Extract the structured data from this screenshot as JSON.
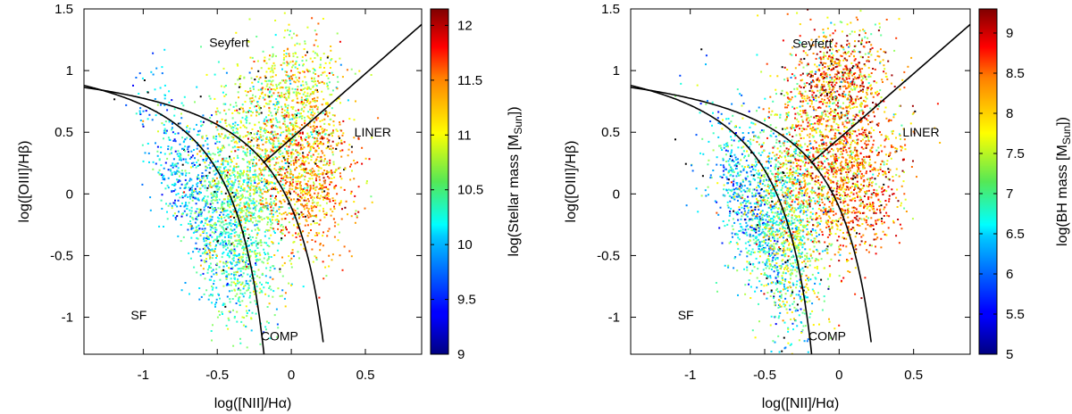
{
  "chart_data": [
    {
      "type": "scatter",
      "title": "",
      "xlabel": "log([NII]/Hα)",
      "ylabel": "log([OIII]/Hβ)",
      "xlim": [
        -1.4,
        0.88
      ],
      "ylim": [
        -1.3,
        1.5
      ],
      "xticks": [
        -1,
        -0.5,
        0,
        0.5
      ],
      "xtick_labels": [
        "-1",
        "-0.5",
        "0",
        "0.5"
      ],
      "yticks": [
        -1,
        -0.5,
        0,
        0.5,
        1,
        1.5
      ],
      "ytick_labels": [
        "-1",
        "-0.5",
        "0",
        "0.5",
        "1",
        "1.5"
      ],
      "colorbar": {
        "label": "log(Stellar mass [M",
        "label_sub": "Sun",
        "label_tail": "])",
        "range": [
          9,
          12.15
        ],
        "ticks": [
          9,
          9.5,
          10,
          10.5,
          11,
          11.5,
          12
        ],
        "tick_labels": [
          "9",
          "9.5",
          "10",
          "10.5",
          "11",
          "11.5",
          "12"
        ]
      },
      "regions": [
        {
          "label": "Seyfert",
          "x": -0.42,
          "y": 1.23
        },
        {
          "label": "LINER",
          "x": 0.55,
          "y": 0.5
        },
        {
          "label": "SF",
          "x": -1.03,
          "y": -0.98
        },
        {
          "label": "COMP",
          "x": -0.08,
          "y": -1.15
        }
      ],
      "demarcation_lines": [
        "Kauffmann 2003: y = 0.61/(x - 0.05) + 1.30",
        "Kewley 2001: y = 0.61/(x - 0.47) + 1.19",
        "Seyfert/LINER: y = 1.05x + 0.45"
      ],
      "point_clouds": [
        {
          "n": 650,
          "cx": -0.66,
          "cy": 0.02,
          "sx": 0.18,
          "sy": 0.42,
          "rho": -0.72,
          "cmean": 10.0,
          "csd": 0.35
        },
        {
          "n": 1100,
          "cx": -0.36,
          "cy": -0.22,
          "sx": 0.14,
          "sy": 0.45,
          "rho": -0.2,
          "cmean": 10.45,
          "csd": 0.3
        },
        {
          "n": 950,
          "cx": -0.12,
          "cy": 0.42,
          "sx": 0.2,
          "sy": 0.42,
          "rho": 0.28,
          "cmean": 10.85,
          "csd": 0.4
        },
        {
          "n": 750,
          "cx": 0.13,
          "cy": 0.13,
          "sx": 0.15,
          "sy": 0.3,
          "rho": 0.1,
          "cmean": 11.3,
          "csd": 0.35
        },
        {
          "n": 320,
          "cx": 0.02,
          "cy": 0.85,
          "sx": 0.17,
          "sy": 0.22,
          "rho": 0.1,
          "cmean": 10.9,
          "csd": 0.35
        }
      ]
    },
    {
      "type": "scatter",
      "title": "",
      "xlabel": "log([NII]/Hα)",
      "ylabel": "log([OIII]/Hβ)",
      "xlim": [
        -1.4,
        0.88
      ],
      "ylim": [
        -1.3,
        1.5
      ],
      "xticks": [
        -1,
        -0.5,
        0,
        0.5
      ],
      "xtick_labels": [
        "-1",
        "-0.5",
        "0",
        "0.5"
      ],
      "yticks": [
        -1,
        -0.5,
        0,
        0.5,
        1,
        1.5
      ],
      "ytick_labels": [
        "-1",
        "-0.5",
        "0",
        "0.5",
        "1",
        "1.5"
      ],
      "colorbar": {
        "label": "log(BH mass [M",
        "label_sub": "Sun",
        "label_tail": "])",
        "range": [
          5,
          9.3
        ],
        "ticks": [
          5,
          5.5,
          6,
          6.5,
          7,
          7.5,
          8,
          8.5,
          9
        ],
        "tick_labels": [
          "5",
          "5.5",
          "6",
          "6.5",
          "7",
          "7.5",
          "8",
          "8.5",
          "9"
        ]
      },
      "regions": [
        {
          "label": "Seyfert",
          "x": -0.18,
          "y": 1.22
        },
        {
          "label": "LINER",
          "x": 0.55,
          "y": 0.5
        },
        {
          "label": "SF",
          "x": -1.03,
          "y": -0.98
        },
        {
          "label": "COMP",
          "x": -0.08,
          "y": -1.15
        }
      ],
      "demarcation_lines": [
        "Kauffmann 2003: y = 0.61/(x - 0.05) + 1.30",
        "Kewley 2001: y = 0.61/(x - 0.47) + 1.19",
        "Seyfert/LINER: y = 1.05x + 0.45"
      ],
      "point_clouds": [
        {
          "n": 700,
          "cx": -0.6,
          "cy": -0.1,
          "sx": 0.15,
          "sy": 0.38,
          "rho": -0.6,
          "cmean": 6.5,
          "csd": 0.6
        },
        {
          "n": 1100,
          "cx": -0.34,
          "cy": -0.25,
          "sx": 0.13,
          "sy": 0.45,
          "rho": -0.1,
          "cmean": 7.1,
          "csd": 0.6
        },
        {
          "n": 950,
          "cx": -0.08,
          "cy": 0.45,
          "sx": 0.2,
          "sy": 0.42,
          "rho": 0.3,
          "cmean": 7.9,
          "csd": 0.65
        },
        {
          "n": 850,
          "cx": 0.1,
          "cy": 0.12,
          "sx": 0.17,
          "sy": 0.3,
          "rho": 0.1,
          "cmean": 8.3,
          "csd": 0.55
        },
        {
          "n": 450,
          "cx": 0.0,
          "cy": 0.95,
          "sx": 0.15,
          "sy": 0.17,
          "rho": 0.1,
          "cmean": 8.4,
          "csd": 0.8
        }
      ]
    }
  ]
}
